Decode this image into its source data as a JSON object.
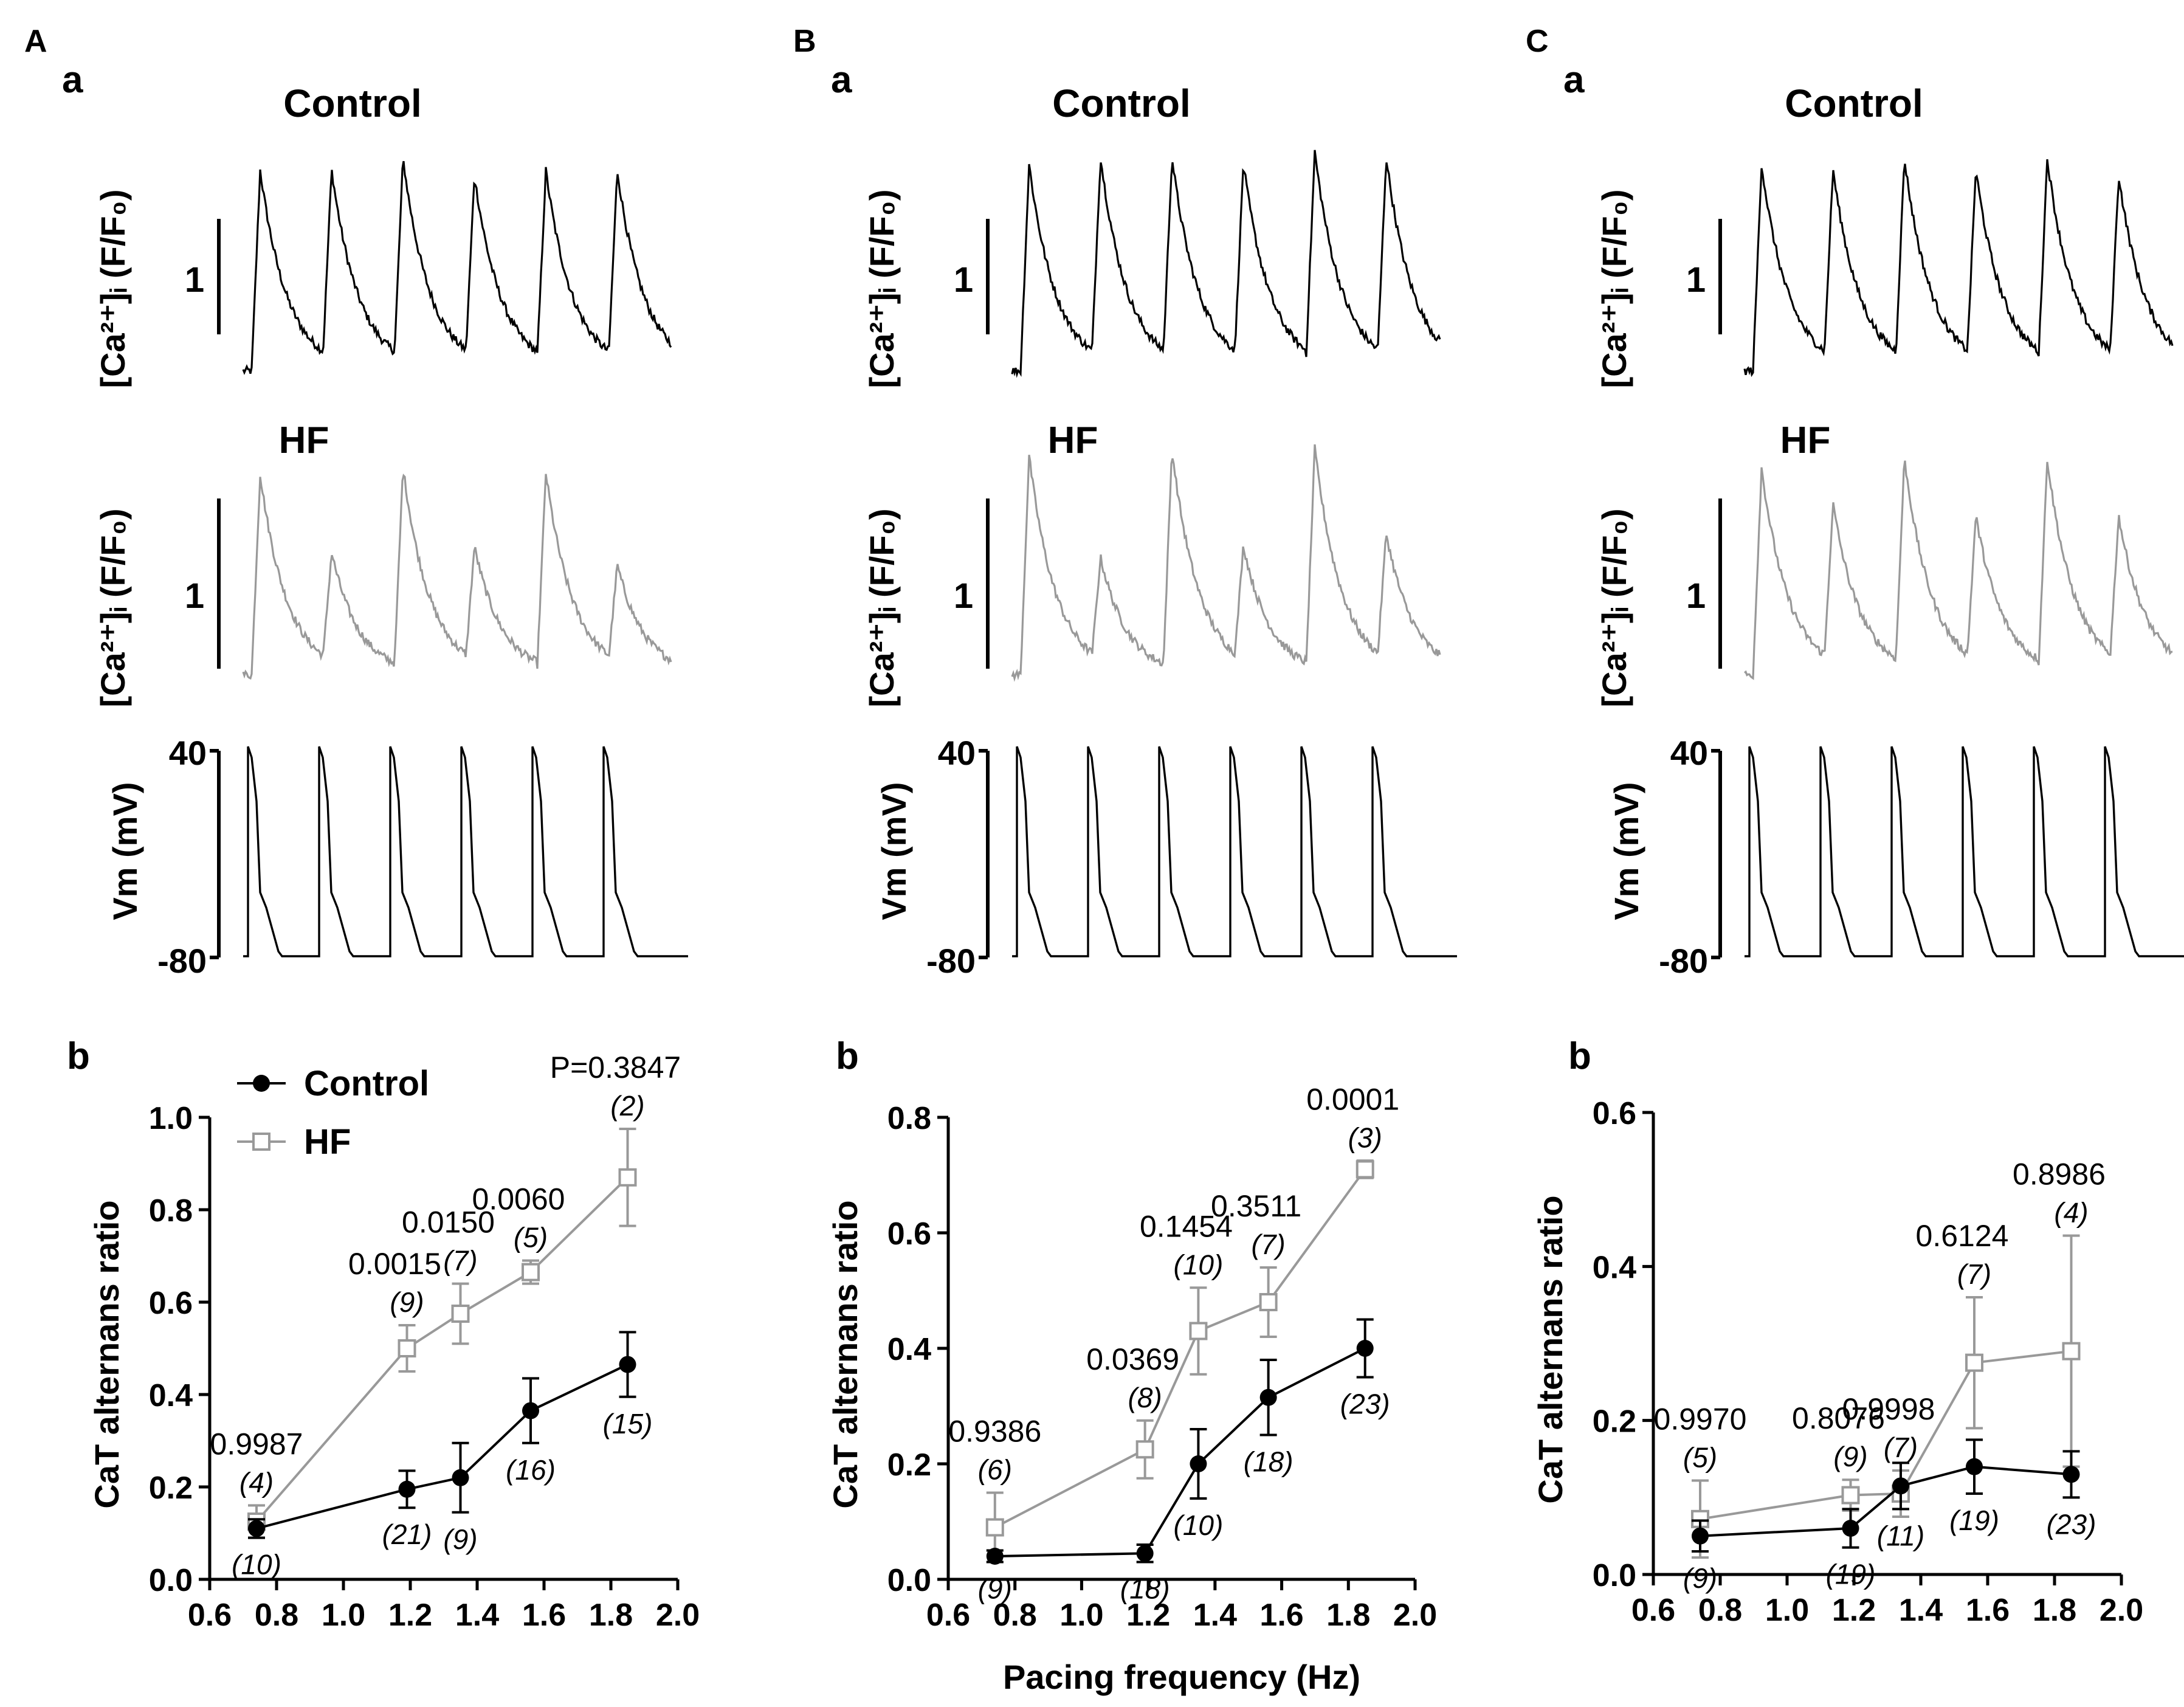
{
  "colors": {
    "control": "#000000",
    "hf": "#999999"
  },
  "labels": {
    "ca_ylabel": "[Ca²⁺]ᵢ (F/F₀)",
    "vm_ylabel": "Vm (mV)",
    "scale_one": "1",
    "vm_top": "40",
    "vm_bottom": "-80",
    "legend_control": "Control",
    "legend_hf": "HF",
    "xlabel": "Pacing frequency (Hz)",
    "ylabel": "CaT alternans ratio"
  },
  "panels": [
    {
      "letter": "A",
      "sub_a": "a",
      "sub_b": "b",
      "trace_control_title": "Control",
      "trace_hf_title": "HF"
    },
    {
      "letter": "B",
      "sub_a": "a",
      "sub_b": "b",
      "trace_control_title": "Control",
      "trace_hf_title": "HF"
    },
    {
      "letter": "C",
      "sub_a": "a",
      "sub_b": "b",
      "trace_control_title": "Control",
      "trace_hf_title": "HF"
    }
  ],
  "chart_data": [
    {
      "type": "line",
      "panel": "A",
      "xlabel": "",
      "ylabel": "CaT alternans ratio",
      "xlim": [
        0.6,
        2.0
      ],
      "ylim": [
        0.0,
        1.0
      ],
      "xticks": [
        "0.6",
        "0.8",
        "1.0",
        "1.2",
        "1.4",
        "1.6",
        "1.8",
        "2.0"
      ],
      "yticks": [
        "0.0",
        "0.2",
        "0.4",
        "0.6",
        "0.8",
        "1.0"
      ],
      "legend": [
        "Control",
        "HF"
      ],
      "series": [
        {
          "name": "Control",
          "x": [
            0.74,
            1.19,
            1.35,
            1.56,
            1.85
          ],
          "y": [
            0.11,
            0.195,
            0.22,
            0.365,
            0.465
          ],
          "err": [
            0.02,
            0.04,
            0.075,
            0.07,
            0.07
          ],
          "n": [
            "(10)",
            "(21)",
            "(9)",
            "(16)",
            "(15)"
          ]
        },
        {
          "name": "HF",
          "x": [
            0.74,
            1.19,
            1.35,
            1.56,
            1.85
          ],
          "y": [
            0.125,
            0.5,
            0.575,
            0.665,
            0.87
          ],
          "err": [
            0.035,
            0.05,
            0.065,
            0.025,
            0.105
          ],
          "n": [
            "(4)",
            "(9)",
            "(7)",
            "(5)",
            "(2)"
          ]
        }
      ],
      "pvalues": [
        "0.9987",
        "0.0015",
        "0.0150",
        "0.0060",
        "P=0.3847"
      ]
    },
    {
      "type": "line",
      "panel": "B",
      "xlabel": "Pacing frequency (Hz)",
      "ylabel": "CaT alternans ratio",
      "xlim": [
        0.6,
        2.0
      ],
      "ylim": [
        0.0,
        0.8
      ],
      "xticks": [
        "0.6",
        "0.8",
        "1.0",
        "1.2",
        "1.4",
        "1.6",
        "1.8",
        "2.0"
      ],
      "yticks": [
        "0.0",
        "0.2",
        "0.4",
        "0.6",
        "0.8"
      ],
      "series": [
        {
          "name": "Control",
          "x": [
            0.74,
            1.19,
            1.35,
            1.56,
            1.85
          ],
          "y": [
            0.04,
            0.045,
            0.2,
            0.315,
            0.4
          ],
          "err": [
            0.01,
            0.015,
            0.06,
            0.065,
            0.05
          ],
          "n": [
            "(9)",
            "(18)",
            "(10)",
            "(18)",
            "(23)"
          ]
        },
        {
          "name": "HF",
          "x": [
            0.74,
            1.19,
            1.35,
            1.56,
            1.85
          ],
          "y": [
            0.09,
            0.225,
            0.43,
            0.48,
            0.71
          ],
          "err": [
            0.06,
            0.05,
            0.075,
            0.06,
            0.015
          ],
          "n": [
            "(6)",
            "(8)",
            "(10)",
            "(7)",
            "(3)"
          ]
        }
      ],
      "pvalues": [
        "0.9386",
        "0.0369",
        "0.1454",
        "0.3511",
        "0.0001"
      ]
    },
    {
      "type": "line",
      "panel": "C",
      "xlabel": "",
      "ylabel": "CaT alternans ratio",
      "xlim": [
        0.6,
        2.0
      ],
      "ylim": [
        0.0,
        0.6
      ],
      "xticks": [
        "0.6",
        "0.8",
        "1.0",
        "1.2",
        "1.4",
        "1.6",
        "1.8",
        "2.0"
      ],
      "yticks": [
        "0.0",
        "0.2",
        "0.4",
        "0.6"
      ],
      "series": [
        {
          "name": "Control",
          "x": [
            0.74,
            1.19,
            1.34,
            1.56,
            1.85
          ],
          "y": [
            0.05,
            0.06,
            0.115,
            0.14,
            0.13
          ],
          "err": [
            0.02,
            0.025,
            0.03,
            0.035,
            0.03
          ],
          "n": [
            "(9)",
            "(19)",
            "(11)",
            "(19)",
            "(23)"
          ]
        },
        {
          "name": "HF",
          "x": [
            0.74,
            1.19,
            1.34,
            1.56,
            1.85
          ],
          "y": [
            0.072,
            0.103,
            0.105,
            0.275,
            0.29
          ],
          "err": [
            0.05,
            0.02,
            0.03,
            0.085,
            0.15
          ],
          "n": [
            "(5)",
            "(9)",
            "(7)",
            "(7)",
            "(4)"
          ]
        }
      ],
      "pvalues": [
        "0.9970",
        "0.8076",
        "0.9998",
        "0.6124",
        "0.8986"
      ]
    }
  ]
}
